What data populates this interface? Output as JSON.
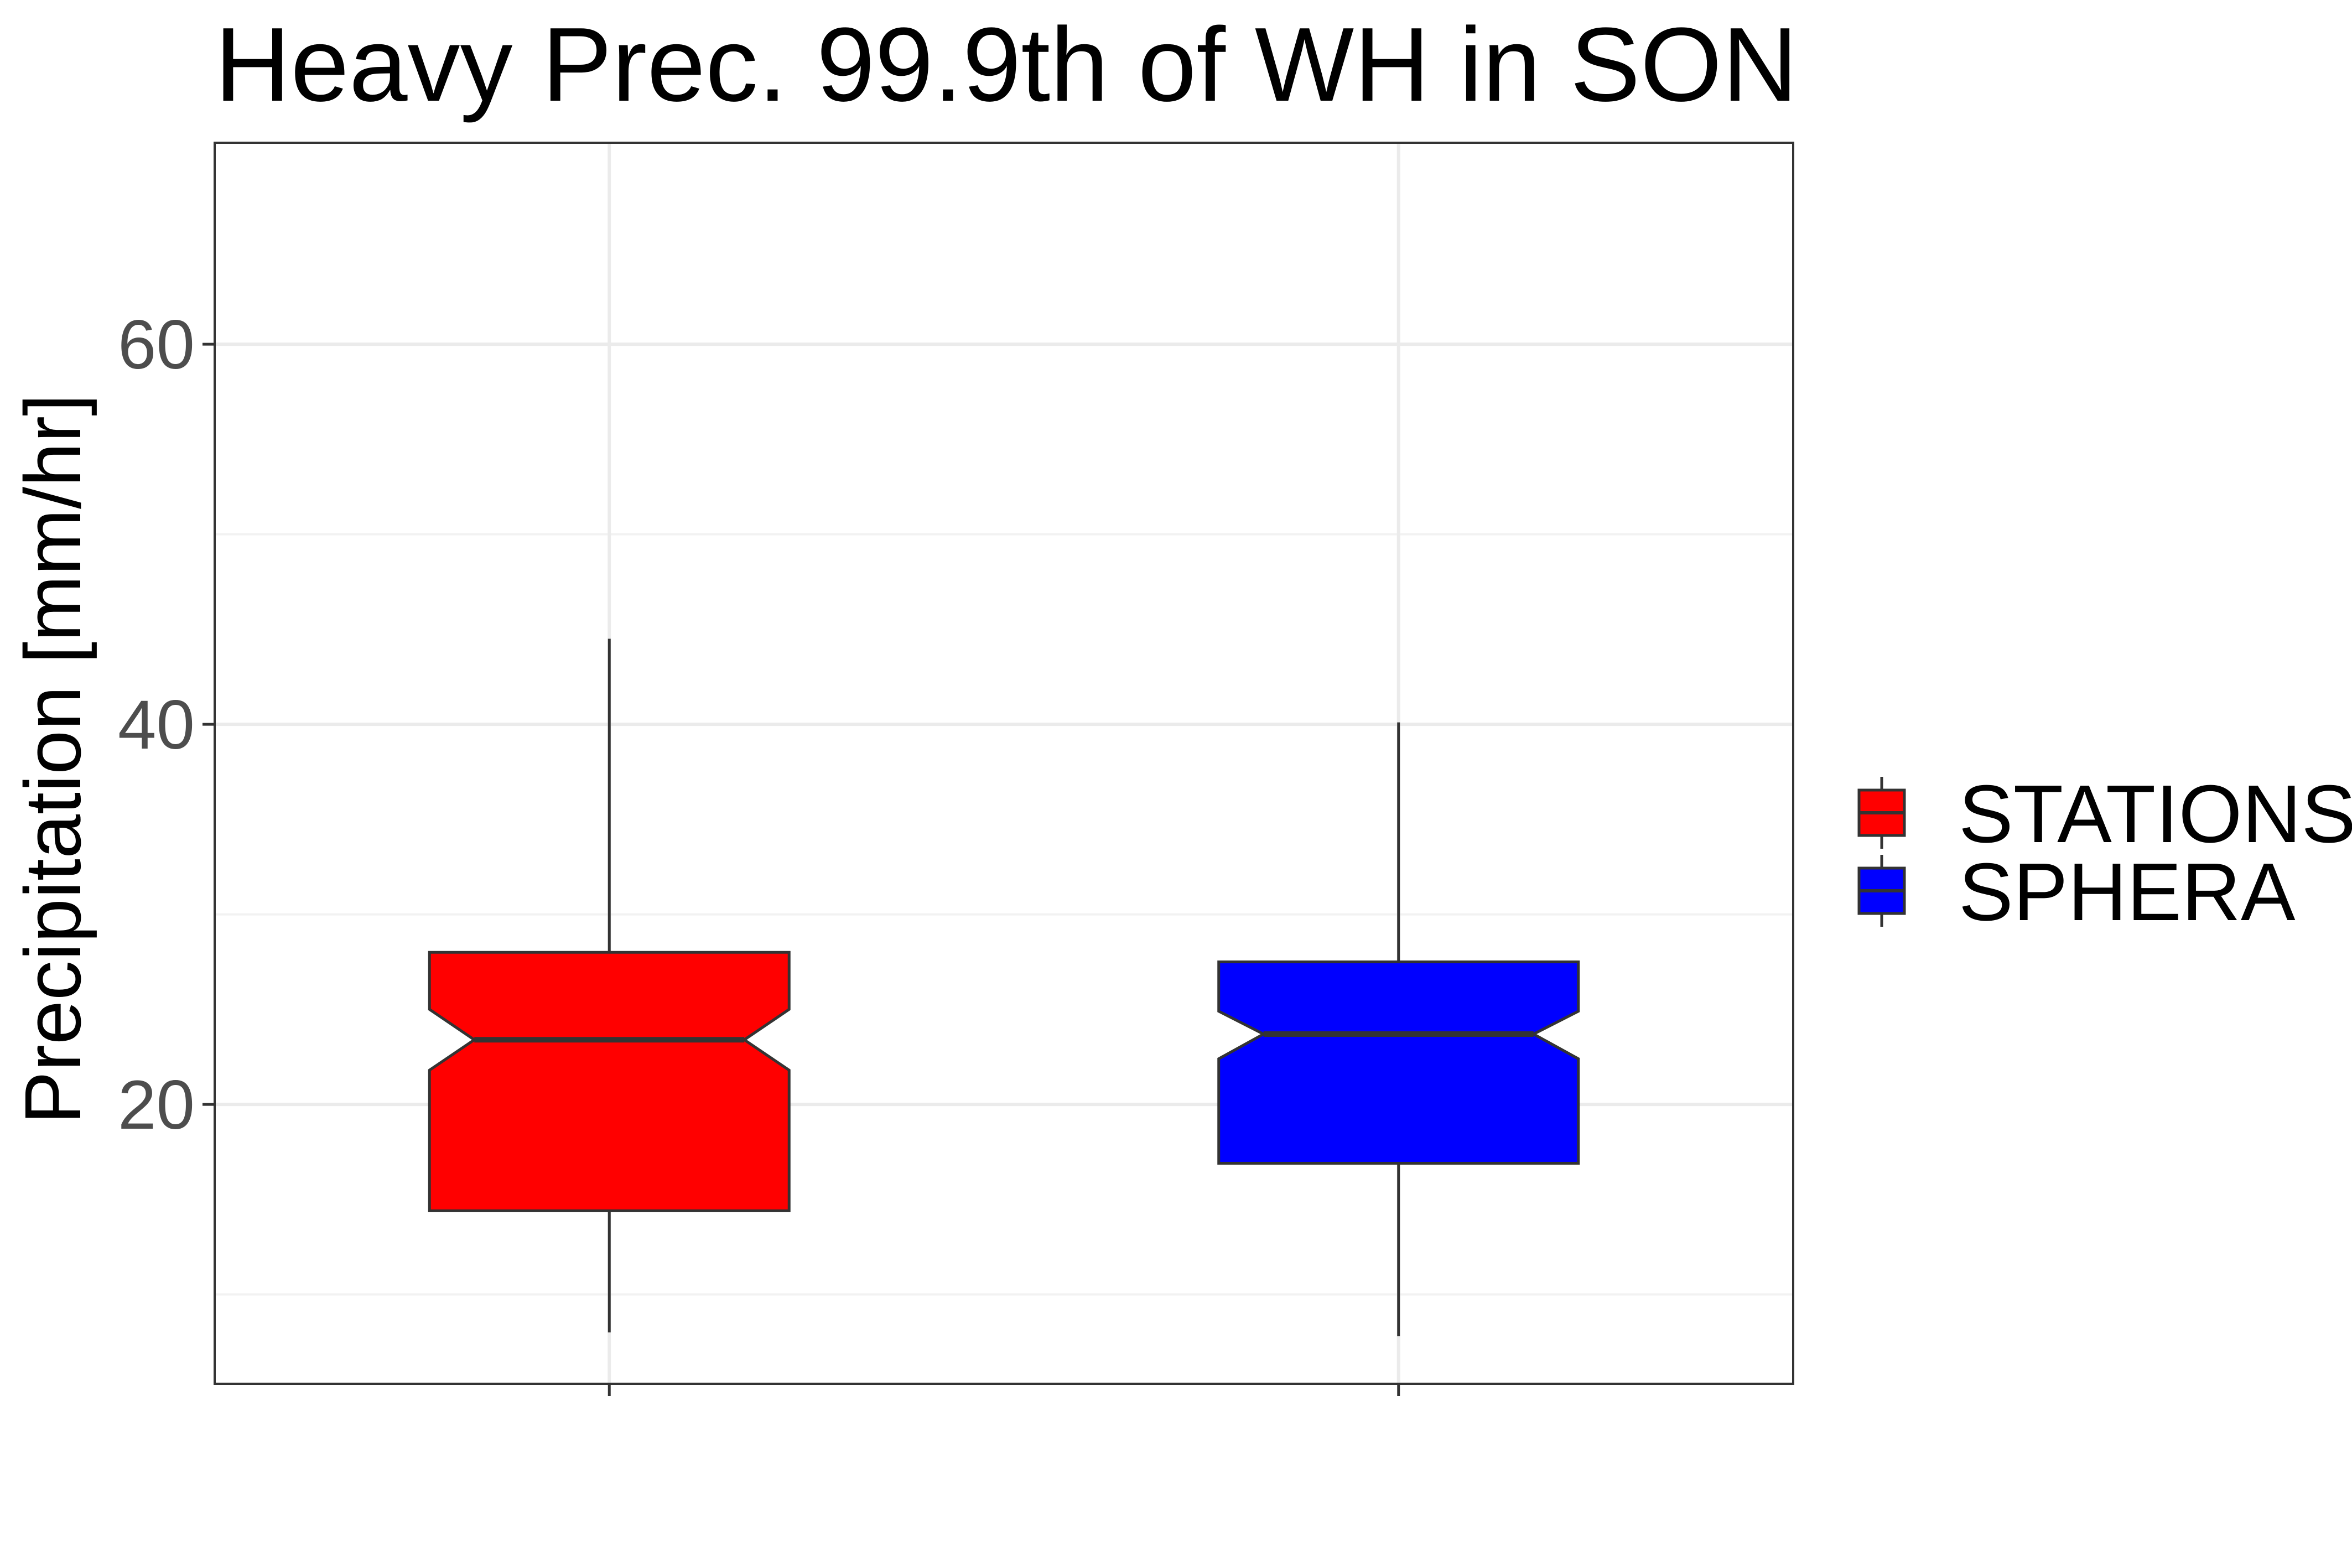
{
  "chart_data": {
    "type": "boxplot",
    "title": "Heavy Prec. 99.9th of WH in SON",
    "xlabel": "",
    "ylabel": "Precipitation [mm/hr]",
    "ylim": [
      5.3,
      70.6
    ],
    "y_ticks": [
      20,
      40,
      60
    ],
    "y_minor_gridlines": [
      10,
      30,
      50
    ],
    "grid": true,
    "notched": true,
    "legend_position": "right",
    "series": [
      {
        "name": "STATIONS",
        "color": "#ff0000",
        "whisker_low": 8.0,
        "q1": 14.4,
        "median": 23.4,
        "q3": 28.0,
        "whisker_high": 44.5,
        "notch_low": 21.8,
        "notch_high": 25.0
      },
      {
        "name": "SPHERA",
        "color": "#0000ff",
        "whisker_low": 7.8,
        "q1": 16.9,
        "median": 23.7,
        "q3": 27.5,
        "whisker_high": 40.1,
        "notch_low": 22.4,
        "notch_high": 24.9
      }
    ]
  }
}
